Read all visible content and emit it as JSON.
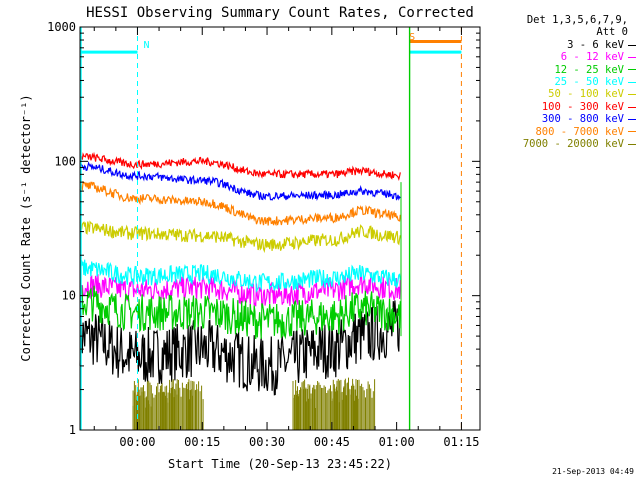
{
  "chart_data": {
    "type": "line",
    "title": "HESSI Observing Summary Count Rates, Corrected",
    "xlabel": "Start Time (20-Sep-13 23:45:22)",
    "ylabel": "Corrected Count Rate (s⁻¹ detector⁻¹)",
    "ylog": true,
    "ylim": [
      1,
      1000
    ],
    "yticks": [
      1,
      10,
      100,
      1000
    ],
    "ytick_labels": [
      "1",
      "10",
      "100",
      "1000"
    ],
    "xlim_min": [
      -13.3,
      79.3
    ],
    "xticks_min": [
      0,
      15,
      30,
      45,
      60,
      75
    ],
    "xtick_labels": [
      "00:00",
      "00:15",
      "00:30",
      "00:45",
      "01:00",
      "01:15"
    ],
    "legend_header": [
      "Det 1,3,5,6,7,9,",
      "Att 0"
    ],
    "series": [
      {
        "name": "3 - 6 keV",
        "color": "#000000",
        "x": [
          -13,
          0,
          15,
          30,
          45,
          52,
          58,
          61
        ],
        "values": [
          5,
          3.5,
          4,
          3,
          4,
          5,
          5.5,
          6
        ]
      },
      {
        "name": "6 - 12 keV",
        "color": "#ff00ff",
        "x": [
          -13,
          0,
          15,
          30,
          45,
          52,
          58,
          61
        ],
        "values": [
          12,
          11,
          11.5,
          10,
          11,
          12.5,
          11.5,
          11
        ]
      },
      {
        "name": "12 - 25 keV",
        "color": "#00cc00",
        "x": [
          -13,
          0,
          15,
          30,
          45,
          52,
          58,
          61
        ],
        "values": [
          9,
          7.5,
          7.5,
          6.5,
          7,
          8,
          7.5,
          7
        ]
      },
      {
        "name": "25 - 50 keV",
        "color": "#00ffff",
        "x": [
          -13,
          0,
          15,
          30,
          45,
          52,
          58,
          61
        ],
        "values": [
          16,
          14,
          14.5,
          12.5,
          13.5,
          14.5,
          13.5,
          13
        ]
      },
      {
        "name": "50 - 100 keV",
        "color": "#cccc00",
        "x": [
          -13,
          0,
          15,
          30,
          45,
          52,
          58,
          61
        ],
        "values": [
          32,
          29,
          28,
          24,
          26,
          30,
          28,
          27
        ]
      },
      {
        "name": "100 - 300 keV",
        "color": "#ff0000",
        "x": [
          -13,
          0,
          15,
          30,
          45,
          52,
          58,
          61
        ],
        "values": [
          108,
          95,
          100,
          80,
          80,
          85,
          80,
          78
        ]
      },
      {
        "name": "300 - 800 keV",
        "color": "#0000ff",
        "x": [
          -13,
          0,
          15,
          30,
          45,
          52,
          58,
          61
        ],
        "values": [
          92,
          78,
          72,
          55,
          56,
          60,
          57,
          55
        ]
      },
      {
        "name": "800 - 7000 keV",
        "color": "#ff8000",
        "x": [
          -13,
          0,
          15,
          30,
          45,
          52,
          58,
          61
        ],
        "values": [
          66,
          53,
          50,
          36,
          38,
          43,
          40,
          37
        ]
      },
      {
        "name": "7000 - 20000 keV",
        "color": "#808000",
        "x": [
          -1,
          2,
          5,
          8,
          11,
          14,
          36,
          40,
          45,
          50,
          55
        ],
        "values": [
          1.8,
          2.2,
          2.0,
          2.3,
          1.9,
          2.1,
          1.8,
          2.2,
          2.0,
          2.3,
          1.9
        ]
      }
    ],
    "flag_bars": [
      {
        "color": "#00ffff",
        "value": 650,
        "from": -13.3,
        "to": 0
      },
      {
        "color": "#00ffff",
        "value": 650,
        "from": 63,
        "to": 75
      },
      {
        "color": "#ff8000",
        "value": 780,
        "from": 63,
        "to": 75
      }
    ],
    "annotations": [
      {
        "text": "N",
        "color": "#00ffff",
        "x": 0,
        "y": 700
      },
      {
        "text": "S",
        "color": "#ff8000",
        "x": 61.5,
        "y": 800
      }
    ],
    "markers": [
      {
        "x": 0,
        "color": "#00ffff"
      },
      {
        "x": 75,
        "color": "#ff8000"
      }
    ],
    "data_gap": [
      61,
      63
    ],
    "timestamp": "21-Sep-2013 04:49"
  }
}
